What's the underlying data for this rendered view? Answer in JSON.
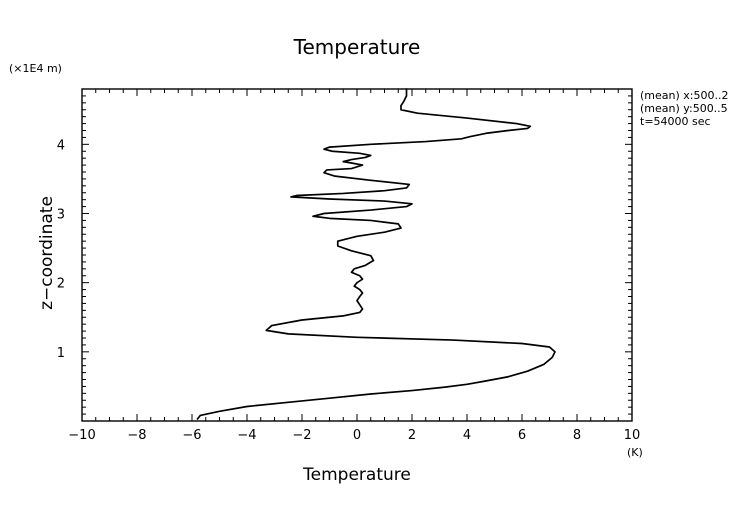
{
  "chart_data": {
    "type": "line",
    "title": "Temperature",
    "xlabel": "Temperature",
    "ylabel": "z−coordinate",
    "x_unit": "(K)",
    "y_unit": "(×1E4 m)",
    "xlim": [
      -10,
      10
    ],
    "ylim": [
      0.0,
      4.8
    ],
    "x_ticks": [
      -10,
      -8,
      -6,
      -4,
      -2,
      0,
      2,
      4,
      6,
      8,
      10
    ],
    "x_tick_labels": [
      "−10",
      "−8",
      "−6",
      "−4",
      "−2",
      "0",
      "2",
      "4",
      "6",
      "8",
      "10"
    ],
    "y_ticks": [
      1,
      2,
      3,
      4
    ],
    "y_tick_labels": [
      "1",
      "2",
      "3",
      "4"
    ],
    "grid": false,
    "annotations": [
      "(mean) x:500..2",
      "(mean) y:500..5",
      "t=54000 sec"
    ],
    "line_color": "#000000",
    "series": [
      {
        "x": [
          -5.8,
          -5.7,
          -5.0,
          -4.0,
          -2.5,
          -1.0,
          0.5,
          2.0,
          3.2,
          4.0,
          4.7,
          5.5,
          6.2,
          6.8,
          7.1,
          7.2,
          7.0,
          6.0,
          3.5,
          0.0,
          -2.5,
          -3.3,
          -3.1,
          -2.0,
          -0.5,
          0.1,
          0.2,
          0.1,
          0.0,
          0.1,
          0.2,
          0.1,
          -0.1,
          0.0,
          0.2,
          0.1,
          -0.2,
          -0.1,
          0.3,
          0.6,
          0.5,
          -0.2,
          -0.7,
          -0.7,
          0.0,
          1.0,
          1.6,
          1.5,
          0.5,
          -1.0,
          -1.6,
          -1.2,
          0.5,
          1.8,
          2.0,
          1.0,
          -1.0,
          -2.4,
          -2.2,
          -0.5,
          1.0,
          1.8,
          1.9,
          0.5,
          -0.8,
          -1.2,
          -1.1,
          -0.2,
          0.2,
          -0.2,
          -0.5,
          -0.2,
          0.3,
          0.5,
          0.1,
          -0.9,
          -1.2,
          -1.0,
          0.5,
          2.5,
          3.8,
          4.1,
          4.7,
          5.5,
          6.2,
          6.3,
          5.8,
          4.0,
          2.2,
          1.6,
          1.6,
          1.7,
          1.8,
          1.8
        ],
        "y": [
          0.03,
          0.08,
          0.14,
          0.21,
          0.27,
          0.33,
          0.39,
          0.44,
          0.49,
          0.53,
          0.58,
          0.64,
          0.72,
          0.82,
          0.92,
          1.0,
          1.07,
          1.12,
          1.17,
          1.21,
          1.26,
          1.31,
          1.38,
          1.46,
          1.52,
          1.57,
          1.62,
          1.68,
          1.74,
          1.8,
          1.85,
          1.9,
          1.95,
          2.0,
          2.05,
          2.1,
          2.15,
          2.2,
          2.25,
          2.32,
          2.39,
          2.46,
          2.53,
          2.6,
          2.67,
          2.73,
          2.79,
          2.85,
          2.9,
          2.93,
          2.96,
          3.0,
          3.05,
          3.1,
          3.14,
          3.18,
          3.21,
          3.24,
          3.26,
          3.29,
          3.33,
          3.37,
          3.42,
          3.48,
          3.54,
          3.59,
          3.63,
          3.65,
          3.7,
          3.73,
          3.75,
          3.78,
          3.81,
          3.84,
          3.87,
          3.9,
          3.93,
          3.96,
          4.0,
          4.04,
          4.08,
          4.11,
          4.16,
          4.2,
          4.23,
          4.26,
          4.3,
          4.38,
          4.45,
          4.5,
          4.56,
          4.62,
          4.7,
          4.8
        ]
      }
    ]
  }
}
